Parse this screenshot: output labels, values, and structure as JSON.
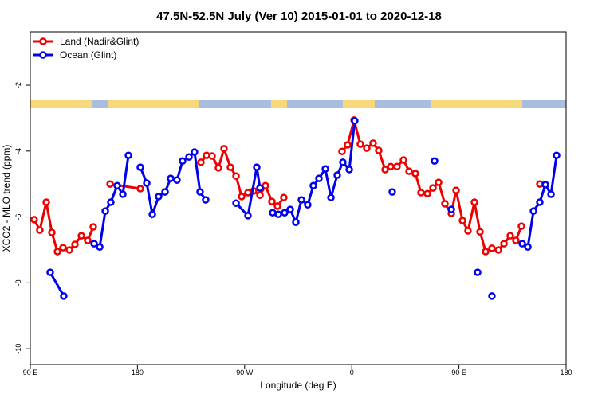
{
  "chart_data": {
    "type": "line",
    "title": "47.5N-52.5N July (Ver 10)   2015-01-01 to 2020-12-18",
    "x_label": "Longitude (deg E)",
    "y_label": "XCO2 - MLO trend (ppm)",
    "xlim": [
      90,
      540
    ],
    "ylim": [
      -10.48,
      -0.38
    ],
    "xticks": [
      {
        "value": 90,
        "label": "90 E"
      },
      180,
      {
        "value": 270,
        "label": "90 W"
      },
      {
        "value": 360,
        "label": "0"
      },
      {
        "value": 450,
        "label": "90 E"
      },
      {
        "value": 540,
        "label": "180"
      }
    ],
    "yticks": [
      -2,
      -4,
      -6,
      -8,
      -10
    ],
    "legend": "top-left",
    "series": [
      {
        "name": "Land (Nadir&Glint)",
        "color": "#ee0000",
        "x": [
          93.3,
          98.0,
          103.4,
          108.1,
          112.8,
          117.5,
          122.8,
          127.5,
          132.9,
          138.2,
          142.9,
          null,
          157.0,
          182.4,
          null,
          233.3,
          238.0,
          242.7,
          248.0,
          252.7,
          258.1,
          262.8,
          267.5,
          272.8,
          277.5,
          282.9,
          287.5,
          292.9,
          297.6,
          302.9,
          null,
          351.8,
          356.5,
          361.9,
          367.2,
          372.6,
          377.9,
          382.6,
          388.0,
          392.7,
          398.0,
          403.4,
          408.1,
          413.4,
          418.1,
          423.5,
          428.2,
          432.9,
          438.2,
          443.6,
          447.6,
          453.0,
          457.6,
          463.0,
          467.7,
          472.4,
          477.7,
          483.1,
          487.8,
          493.1,
          497.8,
          502.5,
          null,
          517.9
        ],
        "values": [
          -6.08,
          -6.4,
          -5.55,
          -6.47,
          -7.05,
          -6.93,
          -7.0,
          -6.83,
          -6.57,
          -6.71,
          -6.3,
          null,
          -5.0,
          -5.14,
          null,
          -4.34,
          -4.13,
          -4.15,
          -4.51,
          -3.93,
          -4.49,
          -4.76,
          -5.38,
          -5.26,
          -5.21,
          -5.34,
          -5.05,
          -5.53,
          -5.67,
          -5.41,
          null,
          -4.01,
          -3.81,
          -3.06,
          -3.79,
          -3.91,
          -3.76,
          -3.98,
          -4.56,
          -4.47,
          -4.47,
          -4.27,
          -4.61,
          -4.68,
          -5.26,
          -5.29,
          -5.12,
          -4.95,
          -5.6,
          -5.89,
          -5.19,
          -6.11,
          -6.42,
          -5.55,
          -6.45,
          -7.05,
          -6.95,
          -7.0,
          -6.81,
          -6.57,
          -6.71,
          -6.28,
          null,
          -5.0
        ]
      },
      {
        "name": "Ocean (Glint)",
        "color": "#0000ee",
        "x": [
          106.7,
          118.1,
          null,
          143.6,
          148.3,
          153.0,
          157.6,
          163.0,
          167.7,
          172.4,
          null,
          182.4,
          187.8,
          192.5,
          197.8,
          203.2,
          207.9,
          213.2,
          217.9,
          223.3,
          227.9,
          232.6,
          237.3,
          null,
          262.8,
          272.8,
          280.2,
          282.9,
          null,
          293.6,
          298.3,
          303.6,
          308.3,
          313.0,
          317.7,
          323.0,
          327.7,
          332.4,
          337.8,
          342.5,
          347.8,
          352.5,
          357.9,
          362.5,
          null,
          394.0,
          null,
          429.5,
          null,
          443.6,
          null,
          465.7,
          null,
          477.7,
          null,
          503.2,
          507.9,
          512.6,
          517.9,
          522.6,
          527.3,
          532.0
        ],
        "values": [
          -7.68,
          -8.4,
          null,
          -6.81,
          -6.91,
          -5.82,
          -5.55,
          -5.05,
          -5.31,
          -4.13,
          null,
          -4.49,
          -4.97,
          -5.92,
          -5.38,
          -5.24,
          -4.83,
          -4.88,
          -4.3,
          -4.18,
          -4.03,
          -5.24,
          -5.48,
          null,
          -5.58,
          -5.96,
          -4.49,
          -5.12,
          null,
          -5.87,
          -5.92,
          -5.87,
          -5.77,
          -6.16,
          -5.48,
          -5.63,
          -5.05,
          -4.83,
          -4.54,
          -5.41,
          -4.73,
          -4.34,
          -4.56,
          -3.08,
          null,
          -5.24,
          null,
          -4.3,
          null,
          -5.77,
          null,
          -7.68,
          null,
          -8.4,
          null,
          -6.81,
          -6.91,
          -5.82,
          -5.55,
          -5.02,
          -5.31,
          -4.13
        ]
      }
    ]
  }
}
